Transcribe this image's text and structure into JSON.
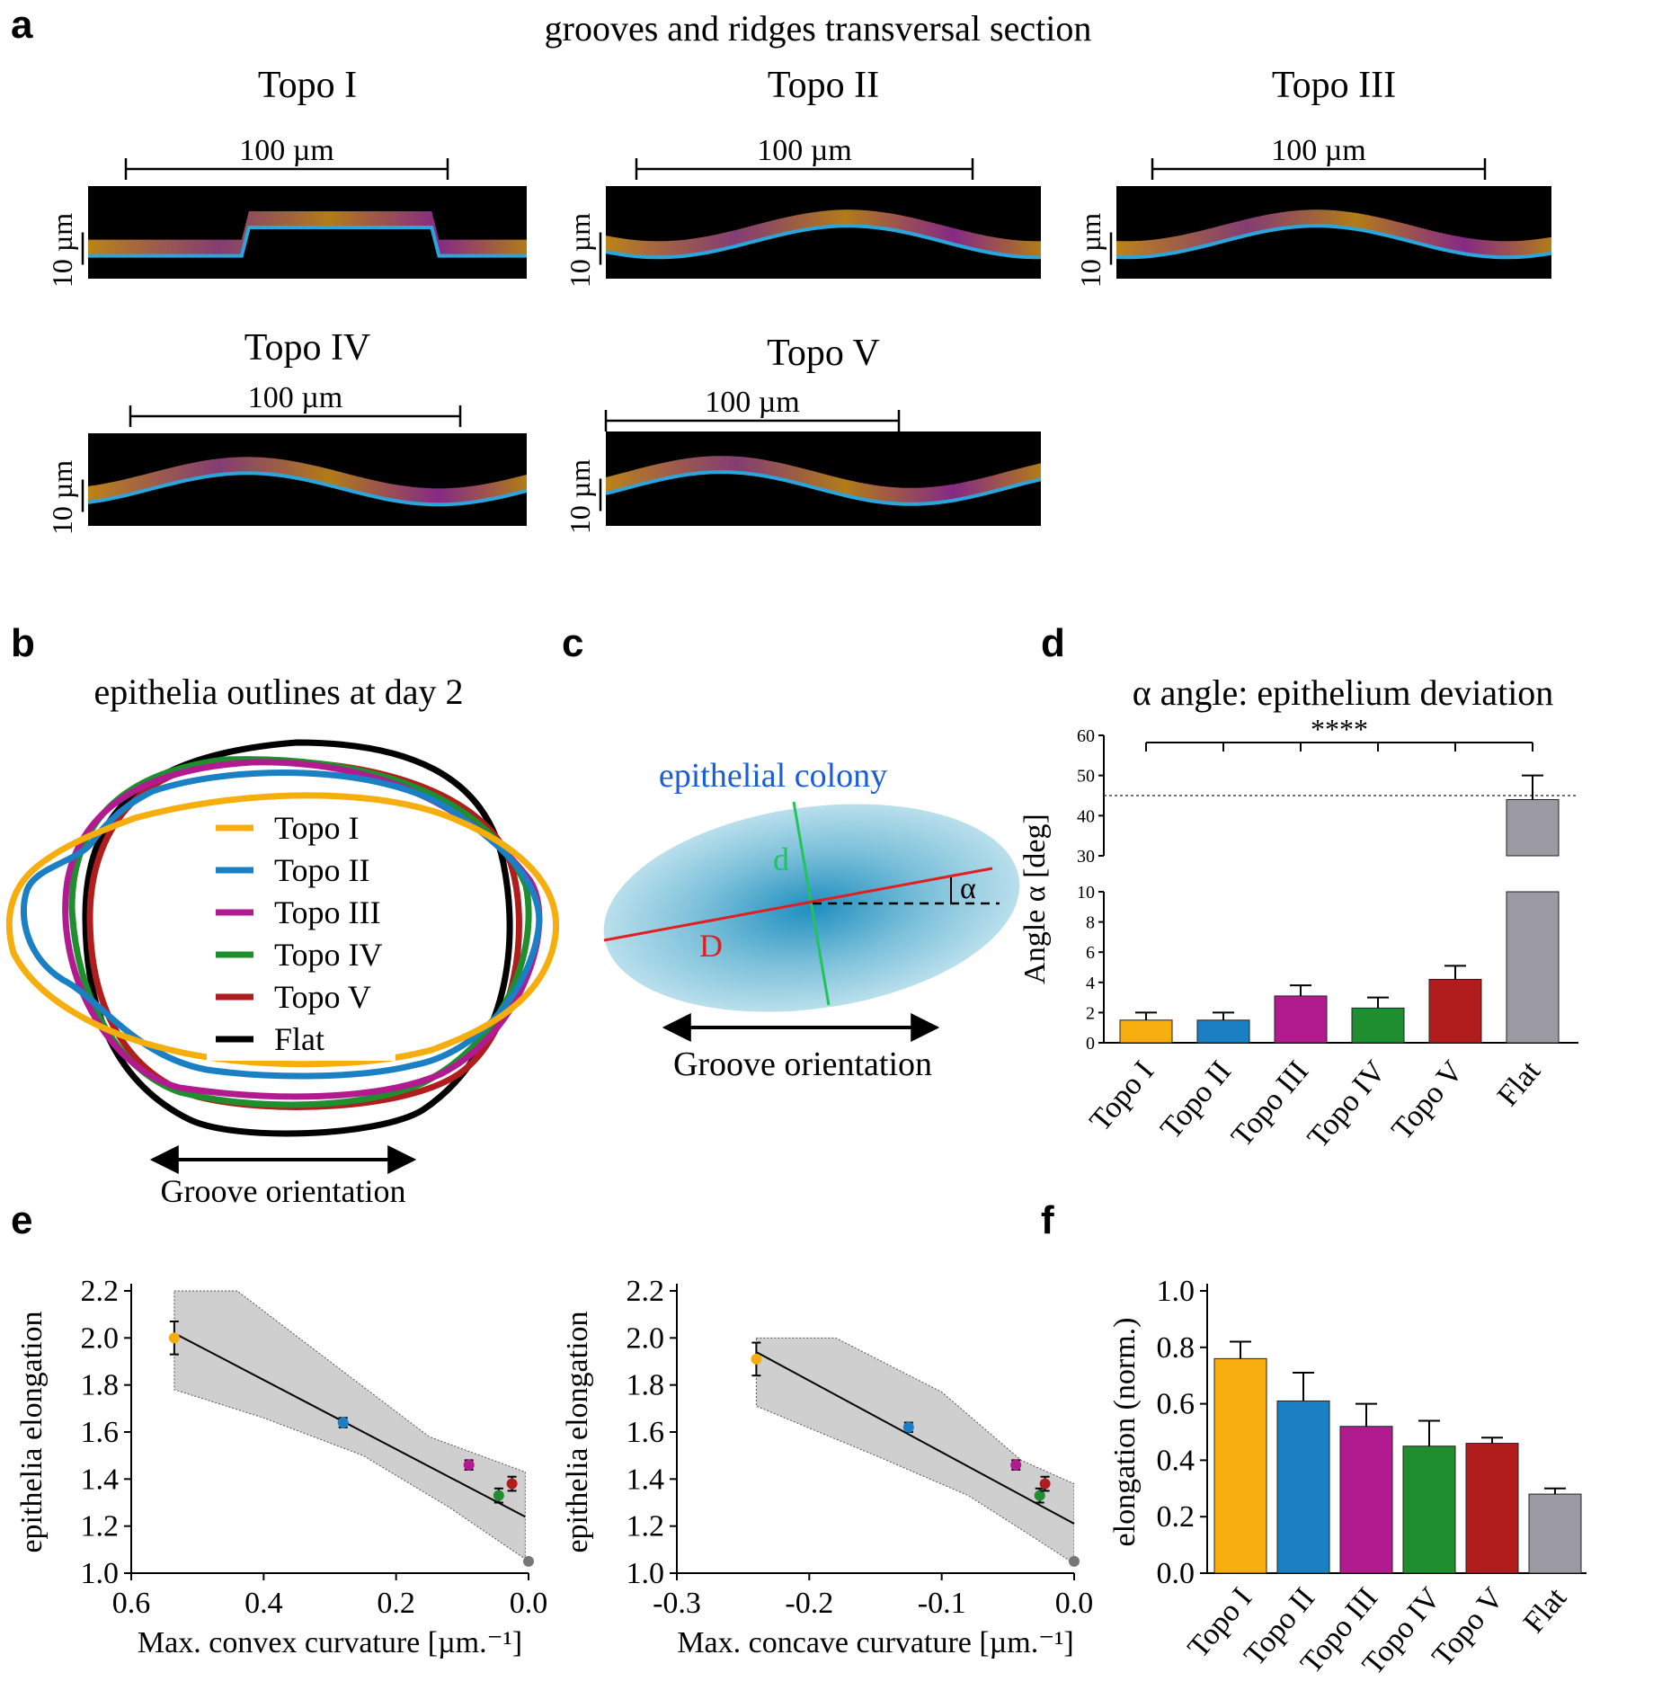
{
  "colors": {
    "topo1": "#f6ae0e",
    "topo2": "#1a7fc3",
    "topo3": "#b21b8f",
    "topo4": "#1e8e2e",
    "topo5": "#b11d1d",
    "flat": "#9b9aa3",
    "flat_outline": "#000000",
    "membrane": "#2aa6dc",
    "cell_orange": "#e8a21e",
    "nuclei": "#b93ab8",
    "colony_green": "#22c35a",
    "colony_red": "#e02020",
    "colony_blue": "#1a5dd6"
  },
  "panel_a": {
    "letter": "a",
    "title": "grooves and ridges transversal section",
    "scale_width": "100 µm",
    "scale_height": "10 µm",
    "sections": [
      {
        "label": "Topo I"
      },
      {
        "label": "Topo II"
      },
      {
        "label": "Topo III"
      },
      {
        "label": "Topo IV"
      },
      {
        "label": "Topo V"
      }
    ]
  },
  "panel_b": {
    "letter": "b",
    "title": "epithelia outlines at day 2",
    "legend": [
      "Topo I",
      "Topo II",
      "Topo III",
      "Topo IV",
      "Topo V",
      "Flat"
    ],
    "arrow_label": "Groove orientation"
  },
  "panel_c": {
    "letter": "c",
    "colony_label": "epithelial colony",
    "minor_axis": "d",
    "major_axis": "D",
    "angle": "α",
    "arrow_label": "Groove orientation"
  },
  "panel_d": {
    "letter": "d"
  },
  "panel_e": {
    "letter": "e"
  },
  "panel_f": {
    "letter": "f"
  },
  "chart_data": [
    {
      "id": "d",
      "type": "bar",
      "title": "α angle: epithelium deviation",
      "ylabel": "Angle α [deg]",
      "categories": [
        "Topo I",
        "Topo II",
        "Topo III",
        "Topo IV",
        "Topo V",
        "Flat"
      ],
      "values": [
        1.5,
        1.5,
        3.1,
        2.3,
        4.2,
        44
      ],
      "errors": [
        0.5,
        0.5,
        0.7,
        0.7,
        0.9,
        6
      ],
      "y_ticks_lower": [
        "0",
        "2",
        "4",
        "6",
        "8",
        "10"
      ],
      "y_ticks_upper": [
        "30",
        "40",
        "50",
        "60"
      ],
      "y_break": [
        10,
        30
      ],
      "reference_line": 45,
      "significance": "****"
    },
    {
      "id": "e1",
      "type": "scatter",
      "xlabel": "Max. convex curvature [µm.⁻¹]",
      "ylabel": "epithelia elongation",
      "xlim": [
        0.6,
        0.0
      ],
      "ylim": [
        1.0,
        2.2
      ],
      "x_ticks": [
        "0.6",
        "0.4",
        "0.2",
        "0.0"
      ],
      "y_ticks": [
        "1.0",
        "1.2",
        "1.4",
        "1.6",
        "1.8",
        "2.0",
        "2.2"
      ],
      "points": [
        {
          "name": "Topo I",
          "x": 0.535,
          "y": 2.0,
          "err": 0.07
        },
        {
          "name": "Topo II",
          "x": 0.28,
          "y": 1.64,
          "err": 0.02
        },
        {
          "name": "Topo III",
          "x": 0.09,
          "y": 1.46,
          "err": 0.02
        },
        {
          "name": "Topo IV",
          "x": 0.045,
          "y": 1.33,
          "err": 0.03
        },
        {
          "name": "Topo V",
          "x": 0.025,
          "y": 1.38,
          "err": 0.03
        },
        {
          "name": "Flat",
          "x": 0.0,
          "y": 1.05,
          "err": 0
        }
      ],
      "fit_line": [
        [
          0.535,
          2.02
        ],
        [
          0.005,
          1.24
        ]
      ],
      "ci_upper": [
        [
          0.535,
          2.2
        ],
        [
          0.44,
          2.2
        ],
        [
          0.3,
          1.9
        ],
        [
          0.15,
          1.58
        ],
        [
          0.005,
          1.43
        ]
      ],
      "ci_lower": [
        [
          0.535,
          1.78
        ],
        [
          0.4,
          1.66
        ],
        [
          0.25,
          1.5
        ],
        [
          0.12,
          1.28
        ],
        [
          0.005,
          1.06
        ]
      ]
    },
    {
      "id": "e2",
      "type": "scatter",
      "xlabel": "Max. concave curvature [µm.⁻¹]",
      "ylabel": "epithelia elongation",
      "xlim": [
        -0.3,
        0.0
      ],
      "ylim": [
        1.0,
        2.2
      ],
      "x_ticks": [
        "-0.3",
        "-0.2",
        "-0.1",
        "0.0"
      ],
      "y_ticks": [
        "1.0",
        "1.2",
        "1.4",
        "1.6",
        "1.8",
        "2.0",
        "2.2"
      ],
      "points": [
        {
          "name": "Topo I",
          "x": -0.24,
          "y": 1.91,
          "err": 0.07
        },
        {
          "name": "Topo II",
          "x": -0.125,
          "y": 1.62,
          "err": 0.02
        },
        {
          "name": "Topo III",
          "x": -0.044,
          "y": 1.46,
          "err": 0.02
        },
        {
          "name": "Topo IV",
          "x": -0.026,
          "y": 1.33,
          "err": 0.03
        },
        {
          "name": "Topo V",
          "x": -0.022,
          "y": 1.38,
          "err": 0.03
        },
        {
          "name": "Flat",
          "x": 0.0,
          "y": 1.05,
          "err": 0
        }
      ],
      "fit_line": [
        [
          -0.24,
          1.94
        ],
        [
          0.0,
          1.21
        ]
      ],
      "ci_upper": [
        [
          -0.24,
          2.0
        ],
        [
          -0.18,
          2.0
        ],
        [
          -0.1,
          1.77
        ],
        [
          -0.04,
          1.48
        ],
        [
          0.0,
          1.38
        ]
      ],
      "ci_lower": [
        [
          -0.24,
          1.71
        ],
        [
          -0.15,
          1.5
        ],
        [
          -0.08,
          1.33
        ],
        [
          -0.03,
          1.15
        ],
        [
          0.0,
          1.04
        ]
      ]
    },
    {
      "id": "f",
      "type": "bar",
      "ylabel": "elongation (norm.)",
      "categories": [
        "Topo I",
        "Topo II",
        "Topo III",
        "Topo IV",
        "Topo V",
        "Flat"
      ],
      "values": [
        0.76,
        0.61,
        0.52,
        0.45,
        0.46,
        0.28
      ],
      "errors": [
        0.06,
        0.1,
        0.08,
        0.09,
        0.02,
        0.02
      ],
      "ylim": [
        0.0,
        1.0
      ],
      "y_ticks": [
        "0.0",
        "0.2",
        "0.4",
        "0.6",
        "0.8",
        "1.0"
      ]
    }
  ]
}
